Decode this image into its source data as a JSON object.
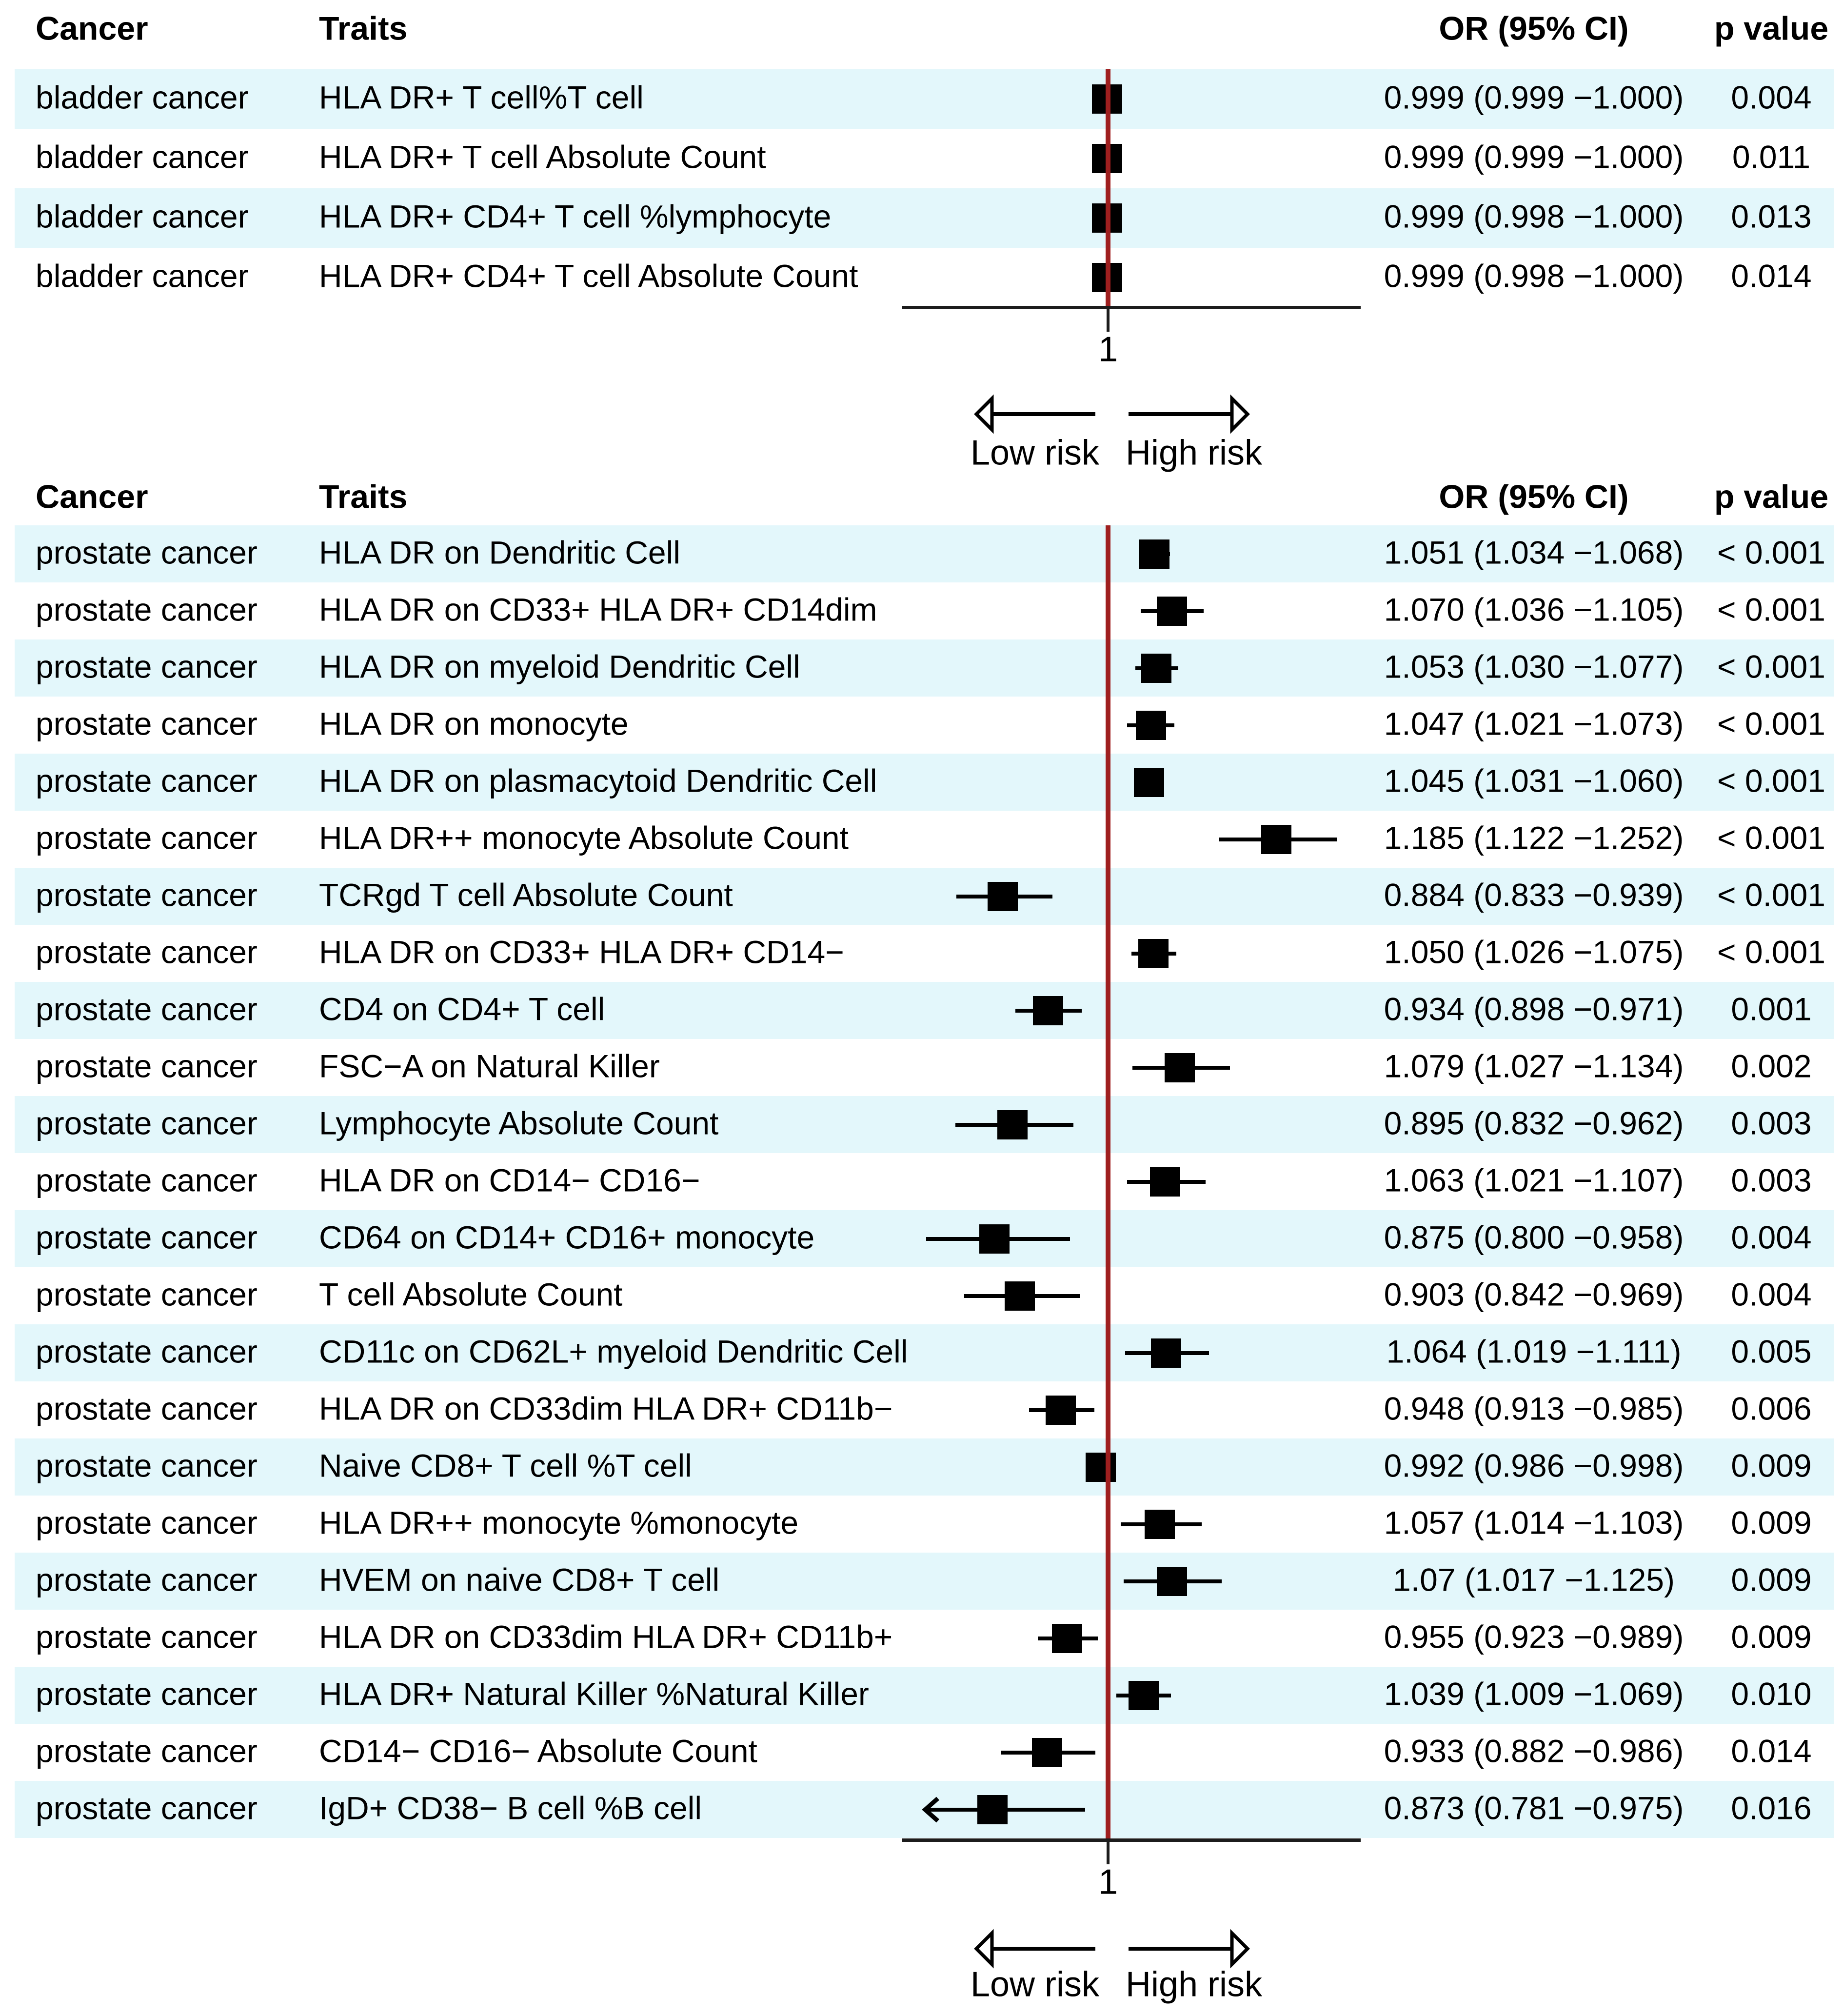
{
  "figure": {
    "type_label": "forest plot",
    "risk_labels": {
      "low": "Low risk",
      "high": "High risk"
    },
    "colors": {
      "stripe": "#e3f7fb",
      "ref_line": "#9f1f1f",
      "marker": "#000000"
    }
  },
  "chart_data": [
    {
      "type": "forest",
      "title": "",
      "columns": {
        "cancer": "Cancer",
        "traits": "Traits",
        "or": "OR (95% CI)",
        "p": "p value"
      },
      "x_axis": {
        "scale": "linear",
        "ref_value": 1,
        "tick_label": "1",
        "range": [
          0.775,
          1.279
        ],
        "clip_low": 0.8,
        "arrow_labels": [
          "Low risk",
          "High risk"
        ]
      },
      "rows": [
        {
          "cancer": "bladder cancer",
          "trait": "HLA DR+ T cell%T cell",
          "or": 0.999,
          "lo": 0.999,
          "hi": 1.0,
          "or_text": "0.999 (0.999 −1.000)",
          "p": "0.004"
        },
        {
          "cancer": "bladder cancer",
          "trait": "HLA DR+ T cell Absolute Count",
          "or": 0.999,
          "lo": 0.999,
          "hi": 1.0,
          "or_text": "0.999 (0.999 −1.000)",
          "p": "0.011"
        },
        {
          "cancer": "bladder cancer",
          "trait": "HLA DR+ CD4+ T cell %lymphocyte",
          "or": 0.999,
          "lo": 0.998,
          "hi": 1.0,
          "or_text": "0.999 (0.998 −1.000)",
          "p": "0.013"
        },
        {
          "cancer": "bladder cancer",
          "trait": "HLA DR+ CD4+ T cell Absolute Count",
          "or": 0.999,
          "lo": 0.998,
          "hi": 1.0,
          "or_text": "0.999 (0.998 −1.000)",
          "p": "0.014"
        }
      ]
    },
    {
      "type": "forest",
      "title": "",
      "columns": {
        "cancer": "Cancer",
        "traits": "Traits",
        "or": "OR (95% CI)",
        "p": "p value"
      },
      "x_axis": {
        "scale": "linear",
        "ref_value": 1,
        "tick_label": "1",
        "range": [
          0.775,
          1.279
        ],
        "clip_low": 0.8,
        "arrow_labels": [
          "Low risk",
          "High risk"
        ]
      },
      "rows": [
        {
          "cancer": "prostate cancer",
          "trait": "HLA DR on Dendritic Cell",
          "or": 1.051,
          "lo": 1.034,
          "hi": 1.068,
          "or_text": "1.051 (1.034 −1.068)",
          "p": "< 0.001"
        },
        {
          "cancer": "prostate cancer",
          "trait": "HLA DR on CD33+ HLA DR+ CD14dim",
          "or": 1.07,
          "lo": 1.036,
          "hi": 1.105,
          "or_text": "1.070 (1.036 −1.105)",
          "p": "< 0.001"
        },
        {
          "cancer": "prostate cancer",
          "trait": "HLA DR on myeloid Dendritic Cell",
          "or": 1.053,
          "lo": 1.03,
          "hi": 1.077,
          "or_text": "1.053 (1.030 −1.077)",
          "p": "< 0.001"
        },
        {
          "cancer": "prostate cancer",
          "trait": "HLA DR on monocyte",
          "or": 1.047,
          "lo": 1.021,
          "hi": 1.073,
          "or_text": "1.047 (1.021 −1.073)",
          "p": "< 0.001"
        },
        {
          "cancer": "prostate cancer",
          "trait": "HLA DR on plasmacytoid Dendritic Cell",
          "or": 1.045,
          "lo": 1.031,
          "hi": 1.06,
          "or_text": "1.045 (1.031 −1.060)",
          "p": "< 0.001"
        },
        {
          "cancer": "prostate cancer",
          "trait": "HLA DR++ monocyte Absolute Count",
          "or": 1.185,
          "lo": 1.122,
          "hi": 1.252,
          "or_text": "1.185 (1.122 −1.252)",
          "p": "< 0.001"
        },
        {
          "cancer": "prostate cancer",
          "trait": "TCRgd T cell Absolute Count",
          "or": 0.884,
          "lo": 0.833,
          "hi": 0.939,
          "or_text": "0.884 (0.833 −0.939)",
          "p": "< 0.001"
        },
        {
          "cancer": "prostate cancer",
          "trait": "HLA DR on CD33+ HLA DR+ CD14−",
          "or": 1.05,
          "lo": 1.026,
          "hi": 1.075,
          "or_text": "1.050 (1.026 −1.075)",
          "p": "< 0.001"
        },
        {
          "cancer": "prostate cancer",
          "trait": "CD4 on CD4+ T cell",
          "or": 0.934,
          "lo": 0.898,
          "hi": 0.971,
          "or_text": "0.934 (0.898 −0.971)",
          "p": "0.001"
        },
        {
          "cancer": "prostate cancer",
          "trait": "FSC−A on Natural Killer",
          "or": 1.079,
          "lo": 1.027,
          "hi": 1.134,
          "or_text": "1.079 (1.027 −1.134)",
          "p": "0.002"
        },
        {
          "cancer": "prostate cancer",
          "trait": "Lymphocyte Absolute Count",
          "or": 0.895,
          "lo": 0.832,
          "hi": 0.962,
          "or_text": "0.895 (0.832 −0.962)",
          "p": "0.003"
        },
        {
          "cancer": "prostate cancer",
          "trait": "HLA DR on CD14− CD16−",
          "or": 1.063,
          "lo": 1.021,
          "hi": 1.107,
          "or_text": "1.063 (1.021 −1.107)",
          "p": "0.003"
        },
        {
          "cancer": "prostate cancer",
          "trait": "CD64 on CD14+ CD16+ monocyte",
          "or": 0.875,
          "lo": 0.8,
          "hi": 0.958,
          "or_text": "0.875 (0.800 −0.958)",
          "p": "0.004"
        },
        {
          "cancer": "prostate cancer",
          "trait": "T cell Absolute Count",
          "or": 0.903,
          "lo": 0.842,
          "hi": 0.969,
          "or_text": "0.903 (0.842 −0.969)",
          "p": "0.004"
        },
        {
          "cancer": "prostate cancer",
          "trait": "CD11c on CD62L+ myeloid Dendritic Cell",
          "or": 1.064,
          "lo": 1.019,
          "hi": 1.111,
          "or_text": "1.064 (1.019 −1.111)",
          "p": "0.005"
        },
        {
          "cancer": "prostate cancer",
          "trait": "HLA DR on CD33dim HLA DR+ CD11b−",
          "or": 0.948,
          "lo": 0.913,
          "hi": 0.985,
          "or_text": "0.948 (0.913 −0.985)",
          "p": "0.006"
        },
        {
          "cancer": "prostate cancer",
          "trait": "Naive CD8+ T cell %T cell",
          "or": 0.992,
          "lo": 0.986,
          "hi": 0.998,
          "or_text": "0.992 (0.986 −0.998)",
          "p": "0.009"
        },
        {
          "cancer": "prostate cancer",
          "trait": "HLA DR++ monocyte %monocyte",
          "or": 1.057,
          "lo": 1.014,
          "hi": 1.103,
          "or_text": "1.057 (1.014 −1.103)",
          "p": "0.009"
        },
        {
          "cancer": "prostate cancer",
          "trait": "HVEM on naive CD8+ T cell",
          "or": 1.07,
          "lo": 1.017,
          "hi": 1.125,
          "or_text": "1.07 (1.017 −1.125)",
          "p": "0.009"
        },
        {
          "cancer": "prostate cancer",
          "trait": "HLA DR on CD33dim HLA DR+ CD11b+",
          "or": 0.955,
          "lo": 0.923,
          "hi": 0.989,
          "or_text": "0.955 (0.923 −0.989)",
          "p": "0.009"
        },
        {
          "cancer": "prostate cancer",
          "trait": "HLA DR+ Natural Killer %Natural Killer",
          "or": 1.039,
          "lo": 1.009,
          "hi": 1.069,
          "or_text": "1.039 (1.009 −1.069)",
          "p": "0.010"
        },
        {
          "cancer": "prostate cancer",
          "trait": "CD14− CD16− Absolute Count",
          "or": 0.933,
          "lo": 0.882,
          "hi": 0.986,
          "or_text": "0.933 (0.882 −0.986)",
          "p": "0.014"
        },
        {
          "cancer": "prostate cancer",
          "trait": "IgD+ CD38− B cell %B cell",
          "or": 0.873,
          "lo": 0.781,
          "hi": 0.975,
          "or_text": "0.873 (0.781 −0.975)",
          "p": "0.016"
        }
      ]
    }
  ]
}
